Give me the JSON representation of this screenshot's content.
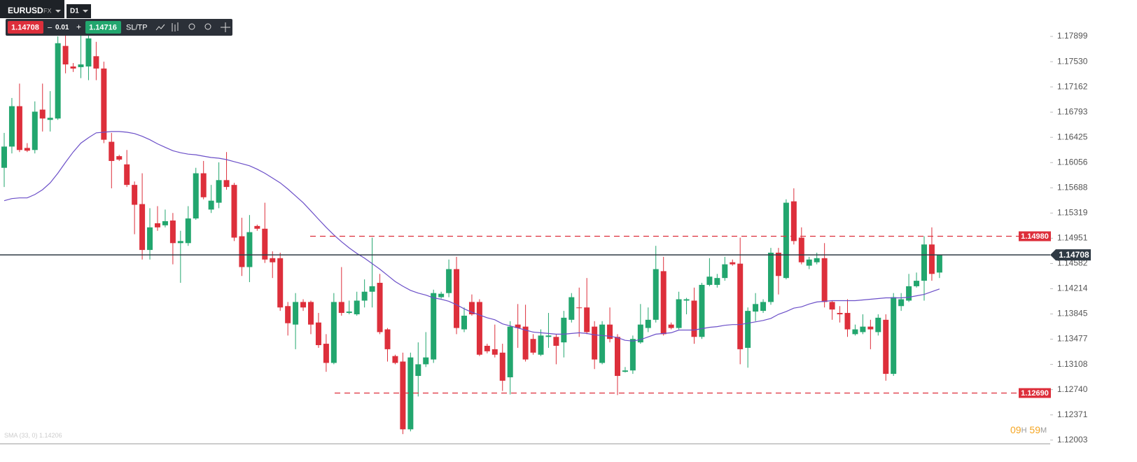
{
  "toolbar": {
    "symbol": "EURUSD",
    "market": "FX",
    "timeframe": "D1",
    "bid": "1.14708",
    "minus": "–",
    "lot": "0.01",
    "plus": "+",
    "ask": "1.14716",
    "sltp": "SL/TP"
  },
  "timer": {
    "hours": "09",
    "h": "H",
    "minutes": "59",
    "m": "M"
  },
  "chart_data": {
    "type": "candlestick",
    "ylim": [
      1.11969,
      1.18431
    ],
    "yticks": [
      1.17899,
      {
        "value": 1.1753,
        "label": "1.17530"
      },
      1.17162,
      1.16793,
      1.16425,
      1.16056,
      1.15688,
      1.15319,
      1.14951,
      1.14582,
      1.14214,
      1.13845,
      1.13477,
      1.13108,
      {
        "value": 1.1274,
        "label": "1.12740"
      },
      1.12371,
      1.12003
    ],
    "series": [
      {
        "up_color": "#22a66e",
        "down_color": "#dd2f3b",
        "open": [
          1.1598,
          1.1629,
          1.1688,
          1.1627,
          1.1624,
          1.1683,
          1.1668,
          1.167,
          1.1776,
          1.1746,
          1.1745,
          1.1746,
          1.1761,
          1.1743,
          1.1636,
          1.1615,
          1.1603,
          1.1573,
          1.1545,
          1.1478,
          1.1517,
          1.1514,
          1.1521,
          1.1488,
          1.1488,
          1.1524,
          1.159,
          1.1537,
          1.1547,
          1.158,
          1.1573,
          1.1498,
          1.1453,
          1.1513,
          1.1509,
          1.1466,
          1.1466,
          1.1396,
          1.1369,
          1.1402,
          1.1402,
          1.1372,
          1.1341,
          1.1313,
          1.1402,
          1.1386,
          1.1384,
          1.1404,
          1.1417,
          1.143,
          1.1362,
          1.1323,
          1.1315,
          1.1216,
          1.1294,
          1.1311,
          1.1318,
          1.1409,
          1.1415,
          1.145,
          1.1362,
          1.1402,
          1.1402,
          1.1338,
          1.1333,
          1.1328,
          1.1292,
          1.1369,
          1.1366,
          1.1348,
          1.1325,
          1.1351,
          1.1351,
          1.1343,
          1.1376,
          1.1394,
          1.1394,
          1.1366,
          1.1313,
          1.1369,
          1.1351,
          1.13,
          1.1302,
          1.1343,
          1.1364,
          1.1376,
          1.1447,
          1.1369,
          1.1364,
          1.1404,
          1.1404,
          1.1351,
          1.1427,
          1.1427,
          1.1437,
          1.146,
          1.1458,
          1.1335,
          1.1388,
          1.1389,
          1.1402,
          1.1474,
          1.1437,
          1.1549,
          1.1496,
          1.1455,
          1.146,
          1.1466,
          1.1402,
          1.1386,
          1.1386,
          1.1355,
          1.1358,
          1.1366,
          1.1358,
          1.1376,
          1.1297,
          1.1396,
          1.1404,
          1.1425,
          1.1433,
          1.1486,
          1.1445
        ],
        "high": [
          1.1649,
          1.17,
          1.1721,
          1.1634,
          1.1695,
          1.1721,
          1.171,
          1.179,
          1.1802,
          1.1751,
          1.1792,
          1.1794,
          1.1782,
          1.1753,
          1.1649,
          1.1617,
          1.1624,
          1.1578,
          1.159,
          1.1539,
          1.1542,
          1.1537,
          1.1532,
          1.1506,
          1.1542,
          1.1598,
          1.1608,
          1.1573,
          1.1606,
          1.1621,
          1.1576,
          1.1525,
          1.1529,
          1.1515,
          1.1547,
          1.1476,
          1.1474,
          1.1402,
          1.1415,
          1.1406,
          1.1404,
          1.1386,
          1.1355,
          1.1415,
          1.1453,
          1.1404,
          1.1417,
          1.1435,
          1.1496,
          1.1443,
          1.1364,
          1.1325,
          1.1328,
          1.1328,
          1.1343,
          1.1358,
          1.142,
          1.1417,
          1.1464,
          1.1468,
          1.1394,
          1.1413,
          1.1406,
          1.1341,
          1.1369,
          1.1341,
          1.1374,
          1.1399,
          1.1398,
          1.1355,
          1.1362,
          1.1386,
          1.1355,
          1.1389,
          1.1415,
          1.1423,
          1.1437,
          1.1374,
          1.1374,
          1.1394,
          1.1355,
          1.1307,
          1.1353,
          1.1399,
          1.1394,
          1.1484,
          1.1468,
          1.1372,
          1.1417,
          1.1408,
          1.1423,
          1.143,
          1.1466,
          1.1443,
          1.1468,
          1.1464,
          1.1496,
          1.1394,
          1.1415,
          1.1406,
          1.1481,
          1.1481,
          1.1552,
          1.1568,
          1.1511,
          1.1468,
          1.1474,
          1.1488,
          1.1404,
          1.1396,
          1.1406,
          1.1369,
          1.1384,
          1.1376,
          1.1384,
          1.1384,
          1.1415,
          1.1415,
          1.1443,
          1.1445,
          1.1498,
          1.1511,
          1.1471
        ],
        "low": [
          1.157,
          1.1619,
          1.1621,
          1.1621,
          1.1619,
          1.1651,
          1.1651,
          1.1668,
          1.1736,
          1.1738,
          1.1729,
          1.1726,
          1.1726,
          1.1634,
          1.1568,
          1.1608,
          1.157,
          1.1501,
          1.1464,
          1.1464,
          1.1506,
          1.1511,
          1.1457,
          1.143,
          1.1484,
          1.1522,
          1.1552,
          1.1532,
          1.1539,
          1.1566,
          1.1491,
          1.144,
          1.1431,
          1.1506,
          1.1459,
          1.1437,
          1.1389,
          1.1353,
          1.1333,
          1.1389,
          1.1355,
          1.1335,
          1.13,
          1.1311,
          1.1382,
          1.1384,
          1.1382,
          1.1394,
          1.1394,
          1.1355,
          1.1315,
          1.1311,
          1.1209,
          1.1213,
          1.1264,
          1.1307,
          1.1313,
          1.1407,
          1.1409,
          1.1355,
          1.1358,
          1.1382,
          1.1323,
          1.1327,
          1.1321,
          1.1272,
          1.1267,
          1.1335,
          1.1315,
          1.1325,
          1.1323,
          1.1335,
          1.1311,
          1.1321,
          1.1372,
          1.1351,
          1.1355,
          1.1304,
          1.1311,
          1.1343,
          1.1266,
          1.1299,
          1.1297,
          1.1341,
          1.1358,
          1.1372,
          1.1353,
          1.1362,
          1.1362,
          1.1384,
          1.1341,
          1.1348,
          1.1425,
          1.1423,
          1.1433,
          1.1455,
          1.1311,
          1.1306,
          1.1374,
          1.1386,
          1.1398,
          1.1413,
          1.1435,
          1.1486,
          1.1457,
          1.145,
          1.1457,
          1.1394,
          1.1376,
          1.1372,
          1.1351,
          1.1353,
          1.1355,
          1.1333,
          1.1353,
          1.1287,
          1.1294,
          1.1389,
          1.1402,
          1.1423,
          1.1404,
          1.1433,
          1.1437
        ],
        "close": [
          1.1629,
          1.1688,
          1.1624,
          1.1623,
          1.168,
          1.167,
          1.1671,
          1.178,
          1.1749,
          1.1743,
          1.1749,
          1.1787,
          1.1743,
          1.1639,
          1.1608,
          1.161,
          1.1573,
          1.1544,
          1.1478,
          1.1511,
          1.1511,
          1.152,
          1.1488,
          1.1491,
          1.1524,
          1.159,
          1.1555,
          1.155,
          1.158,
          1.157,
          1.1496,
          1.1453,
          1.1504,
          1.1509,
          1.1464,
          1.146,
          1.1394,
          1.1371,
          1.1402,
          1.1394,
          1.1369,
          1.1339,
          1.1313,
          1.1402,
          1.1386,
          1.1388,
          1.1404,
          1.1417,
          1.1425,
          1.1358,
          1.1333,
          1.1313,
          1.1216,
          1.1321,
          1.1311,
          1.1321,
          1.1415,
          1.1414,
          1.145,
          1.1364,
          1.1382,
          1.1384,
          1.1325,
          1.133,
          1.1325,
          1.1287,
          1.1366,
          1.1364,
          1.1318,
          1.1328,
          1.1353,
          1.1353,
          1.1338,
          1.1379,
          1.1409,
          1.1393,
          1.1358,
          1.1318,
          1.1369,
          1.1348,
          1.1294,
          1.1302,
          1.1348,
          1.1369,
          1.1376,
          1.145,
          1.1355,
          1.1364,
          1.1406,
          1.1406,
          1.1351,
          1.1427,
          1.1439,
          1.1437,
          1.1457,
          1.1457,
          1.1333,
          1.1389,
          1.1399,
          1.1402,
          1.1474,
          1.144,
          1.1547,
          1.1491,
          1.146,
          1.1464,
          1.1466,
          1.1402,
          1.1391,
          1.1384,
          1.1362,
          1.1362,
          1.1366,
          1.1362,
          1.1379,
          1.1297,
          1.1409,
          1.1406,
          1.1425,
          1.1433,
          1.1486,
          1.1443,
          1.1471
        ]
      },
      {
        "name": "SMA (33, 0)",
        "last_label": "1.14206",
        "color": "#6b4fc8",
        "values": [
          1.155,
          1.1553,
          1.1554,
          1.1554,
          1.1559,
          1.1566,
          1.1576,
          1.159,
          1.1606,
          1.1621,
          1.1634,
          1.1642,
          1.1649,
          1.165,
          1.1651,
          1.1651,
          1.165,
          1.1648,
          1.1644,
          1.1639,
          1.1633,
          1.1628,
          1.1623,
          1.162,
          1.1618,
          1.1617,
          1.1615,
          1.1613,
          1.1612,
          1.161,
          1.1607,
          1.1604,
          1.1601,
          1.1596,
          1.159,
          1.1583,
          1.1576,
          1.1567,
          1.1557,
          1.1547,
          1.1535,
          1.1523,
          1.1511,
          1.15,
          1.149,
          1.1481,
          1.1473,
          1.1466,
          1.1458,
          1.145,
          1.1441,
          1.1432,
          1.1425,
          1.1419,
          1.1415,
          1.1412,
          1.1408,
          1.1406,
          1.1403,
          1.1398,
          1.1392,
          1.1387,
          1.1383,
          1.1379,
          1.1376,
          1.137,
          1.1367,
          1.1364,
          1.1361,
          1.1358,
          1.1357,
          1.1356,
          1.1355,
          1.1355,
          1.1356,
          1.1357,
          1.1356,
          1.1354,
          1.1353,
          1.1352,
          1.135,
          1.1346,
          1.1345,
          1.1347,
          1.1351,
          1.1355,
          1.1356,
          1.1357,
          1.1361,
          1.1361,
          1.1361,
          1.1363,
          1.1365,
          1.1366,
          1.1368,
          1.1369,
          1.1369,
          1.1371,
          1.1373,
          1.1375,
          1.1378,
          1.1384,
          1.1388,
          1.1393,
          1.1395,
          1.1399,
          1.1402,
          1.1403,
          1.1404,
          1.1404,
          1.1404,
          1.1404,
          1.1405,
          1.1406,
          1.1407,
          1.1408,
          1.1408,
          1.1408,
          1.1409,
          1.1411,
          1.1413,
          1.1417,
          1.1421
        ]
      }
    ],
    "levels": [
      {
        "value": 1.1498,
        "label": "1.14980",
        "color": "#dd2f3b"
      },
      {
        "value": 1.1269,
        "label": "1.12690",
        "color": "#dd2f3b"
      }
    ],
    "current_price": {
      "value": 1.14708,
      "label": "1.14708",
      "color": "#2f3a44"
    }
  }
}
